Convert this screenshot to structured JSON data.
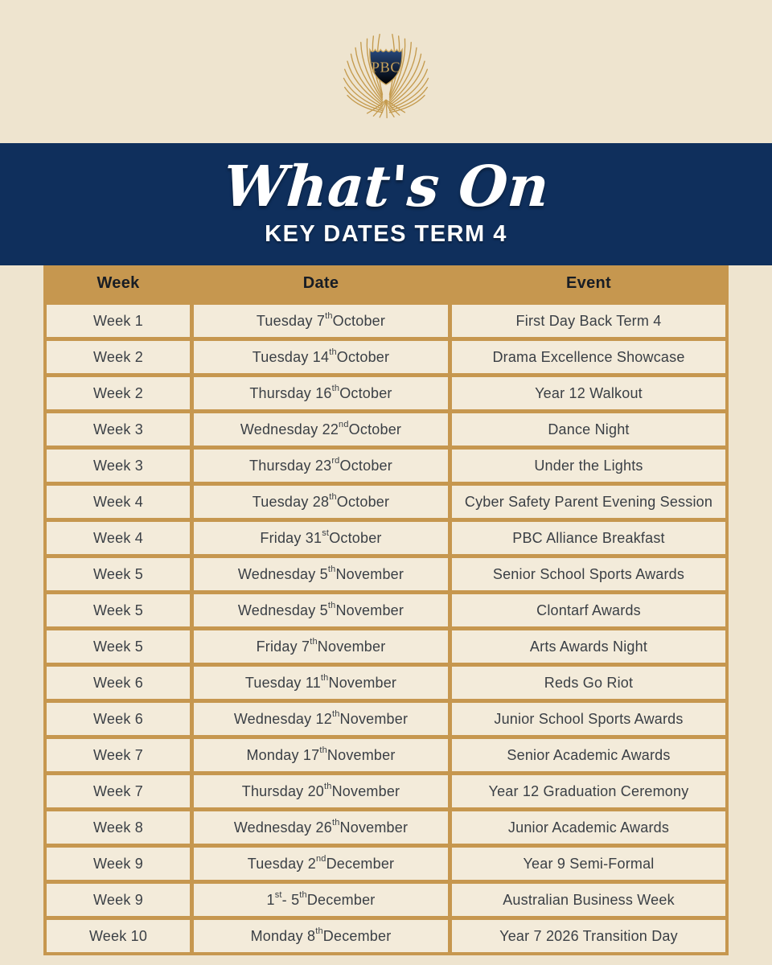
{
  "colors": {
    "brand_navy": "#0f2f5c",
    "brand_gold": "#c6974f",
    "background_cream": "#eee4cf",
    "cell_cream": "#f3ebda"
  },
  "logo": {
    "monogram": "PBC"
  },
  "banner": {
    "script_title": "What's On",
    "subtitle": "KEY DATES TERM 4"
  },
  "table": {
    "headers": [
      "Week",
      "Date",
      "Event"
    ],
    "rows": [
      {
        "week": "Week 1",
        "date": [
          {
            "text": "Tuesday 7"
          },
          {
            "text": "th",
            "sup": true
          },
          {
            "text": " October"
          }
        ],
        "event": "First Day Back Term 4"
      },
      {
        "week": "Week 2",
        "date": [
          {
            "text": "Tuesday 14"
          },
          {
            "text": "th",
            "sup": true
          },
          {
            "text": " October"
          }
        ],
        "event": "Drama Excellence Showcase"
      },
      {
        "week": "Week 2",
        "date": [
          {
            "text": "Thursday 16"
          },
          {
            "text": "th",
            "sup": true
          },
          {
            "text": " October"
          }
        ],
        "event": "Year 12 Walkout"
      },
      {
        "week": "Week 3",
        "date": [
          {
            "text": "Wednesday 22"
          },
          {
            "text": "nd",
            "sup": true
          },
          {
            "text": " October"
          }
        ],
        "event": "Dance Night"
      },
      {
        "week": "Week 3",
        "date": [
          {
            "text": "Thursday 23"
          },
          {
            "text": "rd",
            "sup": true
          },
          {
            "text": " October"
          }
        ],
        "event": "Under the Lights"
      },
      {
        "week": "Week 4",
        "date": [
          {
            "text": "Tuesday 28"
          },
          {
            "text": "th",
            "sup": true
          },
          {
            "text": " October"
          }
        ],
        "event": "Cyber Safety Parent Evening Session"
      },
      {
        "week": "Week 4",
        "date": [
          {
            "text": "Friday 31"
          },
          {
            "text": "st",
            "sup": true
          },
          {
            "text": " October"
          }
        ],
        "event": "PBC Alliance Breakfast"
      },
      {
        "week": "Week 5",
        "date": [
          {
            "text": "Wednesday 5"
          },
          {
            "text": "th",
            "sup": true
          },
          {
            "text": " November"
          }
        ],
        "event": "Senior School Sports Awards"
      },
      {
        "week": "Week 5",
        "date": [
          {
            "text": "Wednesday 5"
          },
          {
            "text": "th",
            "sup": true
          },
          {
            "text": " November"
          }
        ],
        "event": "Clontarf Awards"
      },
      {
        "week": "Week 5",
        "date": [
          {
            "text": "Friday 7"
          },
          {
            "text": "th",
            "sup": true
          },
          {
            "text": " November"
          }
        ],
        "event": "Arts Awards Night"
      },
      {
        "week": "Week 6",
        "date": [
          {
            "text": "Tuesday 11"
          },
          {
            "text": "th",
            "sup": true
          },
          {
            "text": " November"
          }
        ],
        "event": "Reds Go Riot"
      },
      {
        "week": "Week 6",
        "date": [
          {
            "text": "Wednesday 12"
          },
          {
            "text": "th",
            "sup": true
          },
          {
            "text": " November"
          }
        ],
        "event": "Junior School Sports Awards"
      },
      {
        "week": "Week 7",
        "date": [
          {
            "text": "Monday 17"
          },
          {
            "text": "th",
            "sup": true
          },
          {
            "text": " November"
          }
        ],
        "event": "Senior Academic Awards"
      },
      {
        "week": "Week 7",
        "date": [
          {
            "text": "Thursday 20"
          },
          {
            "text": "th",
            "sup": true
          },
          {
            "text": " November"
          }
        ],
        "event": "Year 12 Graduation Ceremony"
      },
      {
        "week": "Week 8",
        "date": [
          {
            "text": "Wednesday 26"
          },
          {
            "text": "th",
            "sup": true
          },
          {
            "text": " November"
          }
        ],
        "event": "Junior Academic Awards"
      },
      {
        "week": "Week 9",
        "date": [
          {
            "text": "Tuesday 2"
          },
          {
            "text": "nd",
            "sup": true
          },
          {
            "text": " December"
          }
        ],
        "event": "Year 9 Semi-Formal"
      },
      {
        "week": "Week 9",
        "date": [
          {
            "text": "1"
          },
          {
            "text": "st",
            "sup": true
          },
          {
            "text": " - 5"
          },
          {
            "text": "th",
            "sup": true
          },
          {
            "text": " December"
          }
        ],
        "event": "Australian Business Week"
      },
      {
        "week": "Week 10",
        "date": [
          {
            "text": "Monday 8"
          },
          {
            "text": "th",
            "sup": true
          },
          {
            "text": " December"
          }
        ],
        "event": "Year 7 2026 Transition Day"
      }
    ]
  }
}
